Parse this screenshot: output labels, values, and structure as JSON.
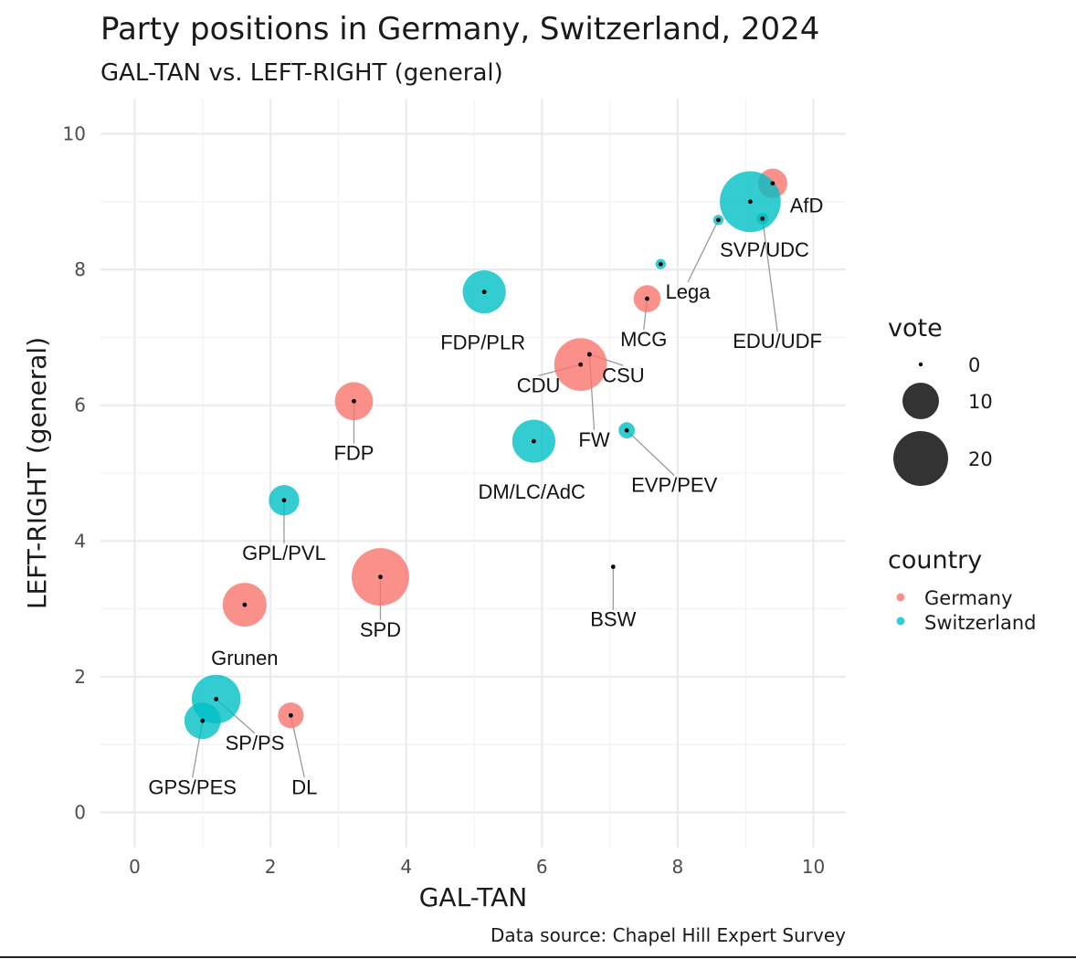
{
  "chart_data": {
    "type": "scatter",
    "title": "Party positions in Germany, Switzerland, 2024",
    "subtitle": "GAL-TAN vs. LEFT-RIGHT (general)",
    "xlabel": "GAL-TAN",
    "ylabel": "LEFT-RIGHT (general)",
    "caption": "Data source: Chapel Hill Expert Survey",
    "xlim": [
      -0.5,
      10.5
    ],
    "ylim": [
      -0.4,
      10.5
    ],
    "x_ticks": [
      "0",
      "2",
      "4",
      "6",
      "8",
      "10"
    ],
    "y_ticks": [
      "0",
      "2",
      "4",
      "6",
      "8",
      "10"
    ],
    "grid": true,
    "size_legend": {
      "title": "vote",
      "values": [
        "0",
        "10",
        "20"
      ]
    },
    "color_legend": {
      "title": "country",
      "entries": [
        {
          "name": "Germany",
          "color": "#F8766D"
        },
        {
          "name": "Switzerland",
          "color": "#00BFC4"
        }
      ]
    },
    "legend_position": "right",
    "points": [
      {
        "party": "AfD",
        "country": "Germany",
        "x": 9.4,
        "y": 9.27,
        "vote": 6.5
      },
      {
        "party": "SVP/UDC",
        "country": "Switzerland",
        "x": 9.07,
        "y": 9.0,
        "vote": 28
      },
      {
        "party": "EDU/UDF",
        "country": "Switzerland",
        "x": 9.25,
        "y": 8.75,
        "vote": 1
      },
      {
        "party": "Lega",
        "country": "Switzerland",
        "x": 8.6,
        "y": 8.73,
        "vote": 0.8
      },
      {
        "party": "Lega",
        "country": "Switzerland",
        "x": 7.75,
        "y": 8.08,
        "vote": 0.8
      },
      {
        "party": "MCG",
        "country": "Germany",
        "x": 7.55,
        "y": 7.57,
        "vote": 5.5
      },
      {
        "party": "CSU",
        "country": "Germany",
        "x": 6.7,
        "y": 6.75,
        "vote": 0.2
      },
      {
        "party": "CDU",
        "country": "Germany",
        "x": 6.57,
        "y": 6.6,
        "vote": 21
      },
      {
        "party": "FW",
        "country": "Germany",
        "x": 6.7,
        "y": 6.75,
        "vote": 0.2
      },
      {
        "party": "FDP/PLR",
        "country": "Switzerland",
        "x": 5.15,
        "y": 7.67,
        "vote": 14
      },
      {
        "party": "EVP/PEV",
        "country": "Switzerland",
        "x": 7.25,
        "y": 5.63,
        "vote": 2
      },
      {
        "party": "DM/LC/AdC",
        "country": "Switzerland",
        "x": 5.88,
        "y": 5.47,
        "vote": 14
      },
      {
        "party": "FDP",
        "country": "Germany",
        "x": 3.23,
        "y": 6.06,
        "vote": 11
      },
      {
        "party": "GPL/PVL",
        "country": "Switzerland",
        "x": 2.2,
        "y": 4.6,
        "vote": 7
      },
      {
        "party": "SPD",
        "country": "Germany",
        "x": 3.62,
        "y": 3.47,
        "vote": 25
      },
      {
        "party": "BSW",
        "country": "Germany",
        "x": 7.05,
        "y": 3.62,
        "vote": 0
      },
      {
        "party": "Grunen",
        "country": "Germany",
        "x": 1.62,
        "y": 3.06,
        "vote": 14.5
      },
      {
        "party": "SP/PS",
        "country": "Switzerland",
        "x": 1.2,
        "y": 1.67,
        "vote": 18
      },
      {
        "party": "GPS/PES",
        "country": "Switzerland",
        "x": 1.0,
        "y": 1.35,
        "vote": 10
      },
      {
        "party": "DL",
        "country": "Germany",
        "x": 2.3,
        "y": 1.43,
        "vote": 5
      }
    ],
    "labels": [
      {
        "text": "AfD",
        "x": 9.9,
        "y": 8.95,
        "px": 9.4,
        "py": 9.27,
        "leader": false
      },
      {
        "text": "SVP/UDC",
        "x": 9.28,
        "y": 8.3,
        "px": 9.07,
        "py": 9.0,
        "leader": false
      },
      {
        "text": "EDU/UDF",
        "x": 9.47,
        "y": 6.95,
        "px": 9.25,
        "py": 8.75,
        "leader": true
      },
      {
        "text": "Lega",
        "x": 8.15,
        "y": 7.68,
        "px": 8.6,
        "py": 8.73,
        "leader": true
      },
      {
        "text": "MCG",
        "x": 7.5,
        "y": 6.98,
        "px": 7.55,
        "py": 7.57,
        "leader": true
      },
      {
        "text": "CSU",
        "x": 7.2,
        "y": 6.45,
        "px": 6.7,
        "py": 6.75,
        "leader": true
      },
      {
        "text": "CDU",
        "x": 5.95,
        "y": 6.3,
        "px": 6.57,
        "py": 6.6,
        "leader": true
      },
      {
        "text": "FW",
        "x": 6.77,
        "y": 5.5,
        "px": 6.7,
        "py": 6.75,
        "leader": true
      },
      {
        "text": "FDP/PLR",
        "x": 5.13,
        "y": 6.93,
        "px": 5.15,
        "py": 7.67,
        "leader": false
      },
      {
        "text": "EVP/PEV",
        "x": 7.95,
        "y": 4.83,
        "px": 7.25,
        "py": 5.63,
        "leader": true
      },
      {
        "text": "DM/LC/AdC",
        "x": 5.85,
        "y": 4.73,
        "px": 5.88,
        "py": 5.47,
        "leader": false
      },
      {
        "text": "FDP",
        "x": 3.23,
        "y": 5.3,
        "px": 3.23,
        "py": 6.06,
        "leader": true
      },
      {
        "text": "GPL/PVL",
        "x": 2.2,
        "y": 3.83,
        "px": 2.2,
        "py": 4.6,
        "leader": true
      },
      {
        "text": "SPD",
        "x": 3.62,
        "y": 2.7,
        "px": 3.62,
        "py": 3.47,
        "leader": true
      },
      {
        "text": "BSW",
        "x": 7.05,
        "y": 2.85,
        "px": 7.05,
        "py": 3.62,
        "leader": true
      },
      {
        "text": "Grunen",
        "x": 1.62,
        "y": 2.28,
        "px": 1.62,
        "py": 3.06,
        "leader": false
      },
      {
        "text": "SP/PS",
        "x": 1.77,
        "y": 1.03,
        "px": 1.2,
        "py": 1.67,
        "leader": true
      },
      {
        "text": "GPS/PES",
        "x": 0.85,
        "y": 0.38,
        "px": 1.0,
        "py": 1.35,
        "leader": true
      },
      {
        "text": "DL",
        "x": 2.5,
        "y": 0.38,
        "px": 2.3,
        "py": 1.43,
        "leader": true
      }
    ]
  }
}
